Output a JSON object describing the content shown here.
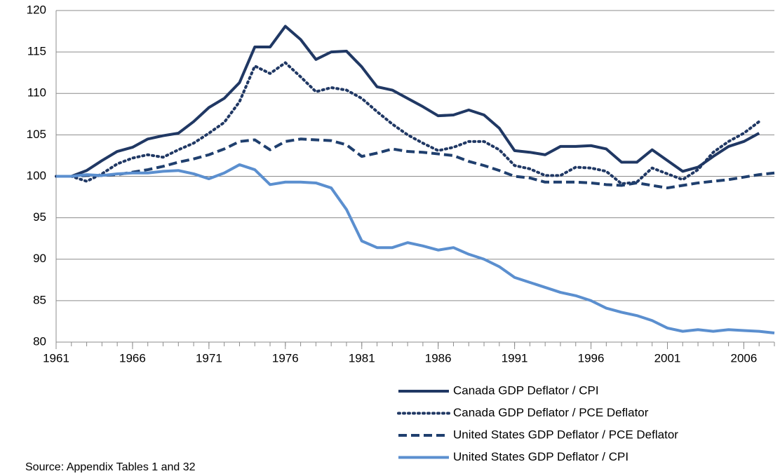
{
  "chart_data": {
    "type": "line",
    "x": [
      1961,
      1962,
      1963,
      1964,
      1965,
      1966,
      1967,
      1968,
      1969,
      1970,
      1971,
      1972,
      1973,
      1974,
      1975,
      1976,
      1977,
      1978,
      1979,
      1980,
      1981,
      1982,
      1983,
      1984,
      1985,
      1986,
      1987,
      1988,
      1989,
      1990,
      1991,
      1992,
      1993,
      1994,
      1995,
      1996,
      1997,
      1998,
      1999,
      2000,
      2001,
      2002,
      2003,
      2004,
      2005,
      2006,
      2007,
      2008
    ],
    "series": [
      {
        "name": "Canada GDP Deflator / CPI",
        "color": "#203864",
        "style": "solid",
        "values": [
          100,
          100,
          100.7,
          101.9,
          103,
          103.5,
          104.5,
          104.9,
          105.2,
          106.6,
          108.3,
          109.4,
          111.3,
          115.6,
          115.6,
          118.1,
          116.5,
          114.1,
          115,
          115.1,
          113.2,
          110.8,
          110.4,
          109.4,
          108.4,
          107.3,
          107.4,
          108,
          107.4,
          105.8,
          103.1,
          102.9,
          102.6,
          103.6,
          103.6,
          103.7,
          103.3,
          101.7,
          101.7,
          103.2,
          101.9,
          100.6,
          101.1,
          102.4,
          103.6,
          104.2,
          105.2,
          null
        ]
      },
      {
        "name": "Canada GDP Deflator / PCE Deflator",
        "color": "#203864",
        "style": "dotted",
        "values": [
          100,
          100,
          99.4,
          100.3,
          101.5,
          102.2,
          102.6,
          102.3,
          103.2,
          104,
          105.2,
          106.5,
          109,
          113.3,
          112.4,
          113.7,
          112,
          110.2,
          110.7,
          110.4,
          109.4,
          107.8,
          106.3,
          105,
          104,
          103.1,
          103.5,
          104.2,
          104.2,
          103.2,
          101.3,
          100.9,
          100.1,
          100.1,
          101.1,
          101,
          100.6,
          99.1,
          99.3,
          101,
          100.3,
          99.6,
          100.8,
          102.9,
          104.2,
          105.2,
          106.6,
          null
        ]
      },
      {
        "name": "United States GDP Deflator / PCE Deflator",
        "color": "#1f3f6e",
        "style": "dashed",
        "values": [
          100,
          100,
          100.1,
          100.1,
          100.2,
          100.5,
          100.8,
          101.2,
          101.7,
          102.1,
          102.6,
          103.3,
          104.2,
          104.4,
          103.2,
          104.2,
          104.5,
          104.4,
          104.3,
          103.8,
          102.4,
          102.8,
          103.3,
          103,
          102.9,
          102.7,
          102.5,
          101.8,
          101.3,
          100.7,
          100,
          99.8,
          99.3,
          99.3,
          99.3,
          99.2,
          99,
          98.9,
          99.2,
          98.9,
          98.6,
          98.9,
          99.2,
          99.4,
          99.6,
          99.9,
          100.2,
          100.4
        ]
      },
      {
        "name": "United States GDP Deflator / CPI",
        "color": "#5b8fcf",
        "style": "solid",
        "values": [
          100,
          100,
          100.2,
          100.1,
          100.3,
          100.4,
          100.4,
          100.6,
          100.7,
          100.3,
          99.7,
          100.4,
          101.4,
          100.8,
          99,
          99.3,
          99.3,
          99.2,
          98.6,
          96,
          92.2,
          91.4,
          91.4,
          92,
          91.6,
          91.1,
          91.4,
          90.6,
          90,
          89.1,
          87.8,
          87.2,
          86.6,
          86,
          85.6,
          85,
          84.1,
          83.6,
          83.2,
          82.6,
          81.7,
          81.3,
          81.5,
          81.3,
          81.5,
          81.4,
          81.3,
          81.1
        ]
      }
    ],
    "xlim": [
      1961,
      2008
    ],
    "xticks": [
      1961,
      1966,
      1971,
      1976,
      1981,
      1986,
      1991,
      1996,
      2001,
      2006
    ],
    "ylim": [
      80,
      120
    ],
    "yticks": [
      80,
      85,
      90,
      95,
      100,
      105,
      110,
      115,
      120
    ],
    "grid": true,
    "legend": "bottom-right",
    "source": "Source: Appendix Tables 1 and 32"
  }
}
